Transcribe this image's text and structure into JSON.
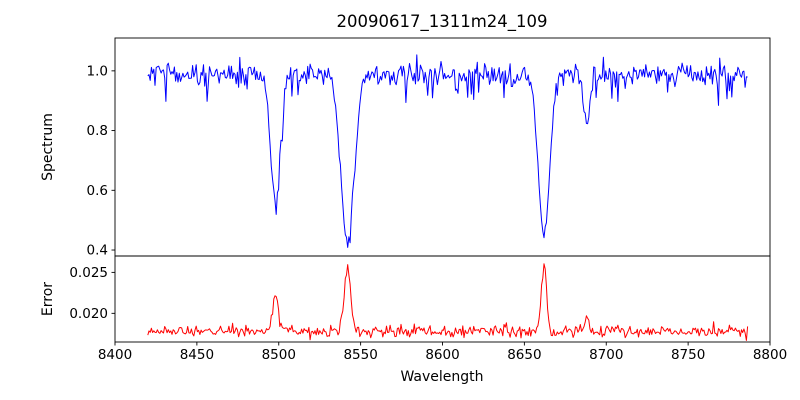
{
  "figure": {
    "background": "#ffffff"
  },
  "chart_data": {
    "type": "line",
    "title": "20090617_1311m24_109",
    "xlabel": "Wavelength",
    "grid": false,
    "legend": null,
    "x_axis": {
      "range": [
        8400,
        8800
      ],
      "ticks": [
        8400,
        8450,
        8500,
        8550,
        8600,
        8650,
        8700,
        8750,
        8800
      ],
      "tick_labels": [
        "8400",
        "8450",
        "8500",
        "8550",
        "8600",
        "8650",
        "8700",
        "8750",
        "8800"
      ],
      "data_span": [
        8420,
        8787
      ]
    },
    "panels": [
      {
        "name": "spectrum",
        "ylabel": "Spectrum",
        "ylim": [
          0.38,
          1.11
        ],
        "yticks": [
          0.4,
          0.6,
          0.8,
          1.0
        ],
        "ytick_labels": [
          "0.4",
          "0.6",
          "0.8",
          "1.0"
        ],
        "line_color": "#0000ff",
        "continuum_level": 0.99,
        "noise_sigma": 0.018,
        "spike_probability": 0.1,
        "spike_max_depth": 0.09,
        "absorption_lines": [
          {
            "center": 8498,
            "depth": 0.43,
            "sigma": 3.0
          },
          {
            "center": 8542,
            "depth": 0.57,
            "sigma": 4.0
          },
          {
            "center": 8662,
            "depth": 0.55,
            "sigma": 3.4
          },
          {
            "center": 8688,
            "depth": 0.19,
            "sigma": 1.8
          }
        ]
      },
      {
        "name": "error",
        "ylabel": "Error",
        "ylim": [
          0.0165,
          0.027
        ],
        "yticks": [
          0.02,
          0.025
        ],
        "ytick_labels": [
          "0.020",
          "0.025"
        ],
        "line_color": "#ff0000",
        "baseline_level": 0.0178,
        "noise_sigma": 0.00035,
        "spike_probability": 0.05,
        "spike_max_height": 0.0006,
        "peaks": [
          {
            "center": 8498,
            "amp": 0.0043,
            "sigma": 1.6
          },
          {
            "center": 8542,
            "amp": 0.0077,
            "sigma": 1.9
          },
          {
            "center": 8662,
            "amp": 0.0085,
            "sigma": 1.6
          },
          {
            "center": 8688,
            "amp": 0.0014,
            "sigma": 1.4
          }
        ]
      }
    ],
    "sampling_step": 0.74,
    "random_seed": 7
  }
}
